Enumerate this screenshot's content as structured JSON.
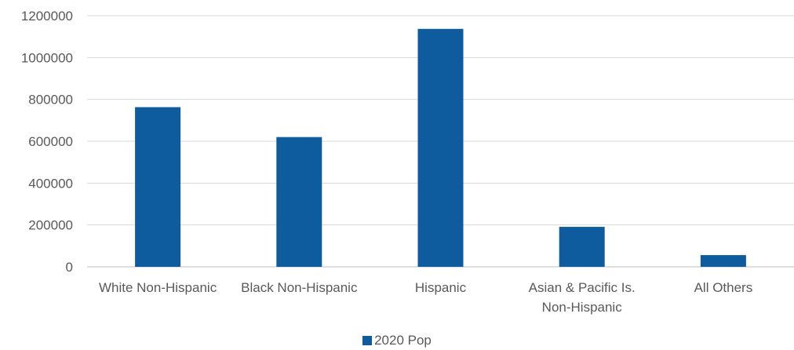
{
  "chart_data": {
    "type": "bar",
    "categories": [
      "White Non-Hispanic",
      "Black Non-Hispanic",
      "Hispanic",
      "Asian & Pacific Is. Non-Hispanic",
      "All Others"
    ],
    "category_lines": [
      [
        "White Non-Hispanic"
      ],
      [
        "Black Non-Hispanic"
      ],
      [
        "Hispanic"
      ],
      [
        "Asian & Pacific Is.",
        "Non-Hispanic"
      ],
      [
        "All Others"
      ]
    ],
    "series": [
      {
        "name": "2020 Pop",
        "values": [
          763000,
          620000,
          1137000,
          191000,
          56000
        ],
        "color": "#0e5c9e"
      }
    ],
    "y_ticks": [
      "0",
      "200000",
      "400000",
      "600000",
      "800000",
      "1000000",
      "1200000"
    ],
    "ylim": [
      0,
      1200000
    ],
    "grid": true,
    "legend_position": "bottom"
  }
}
